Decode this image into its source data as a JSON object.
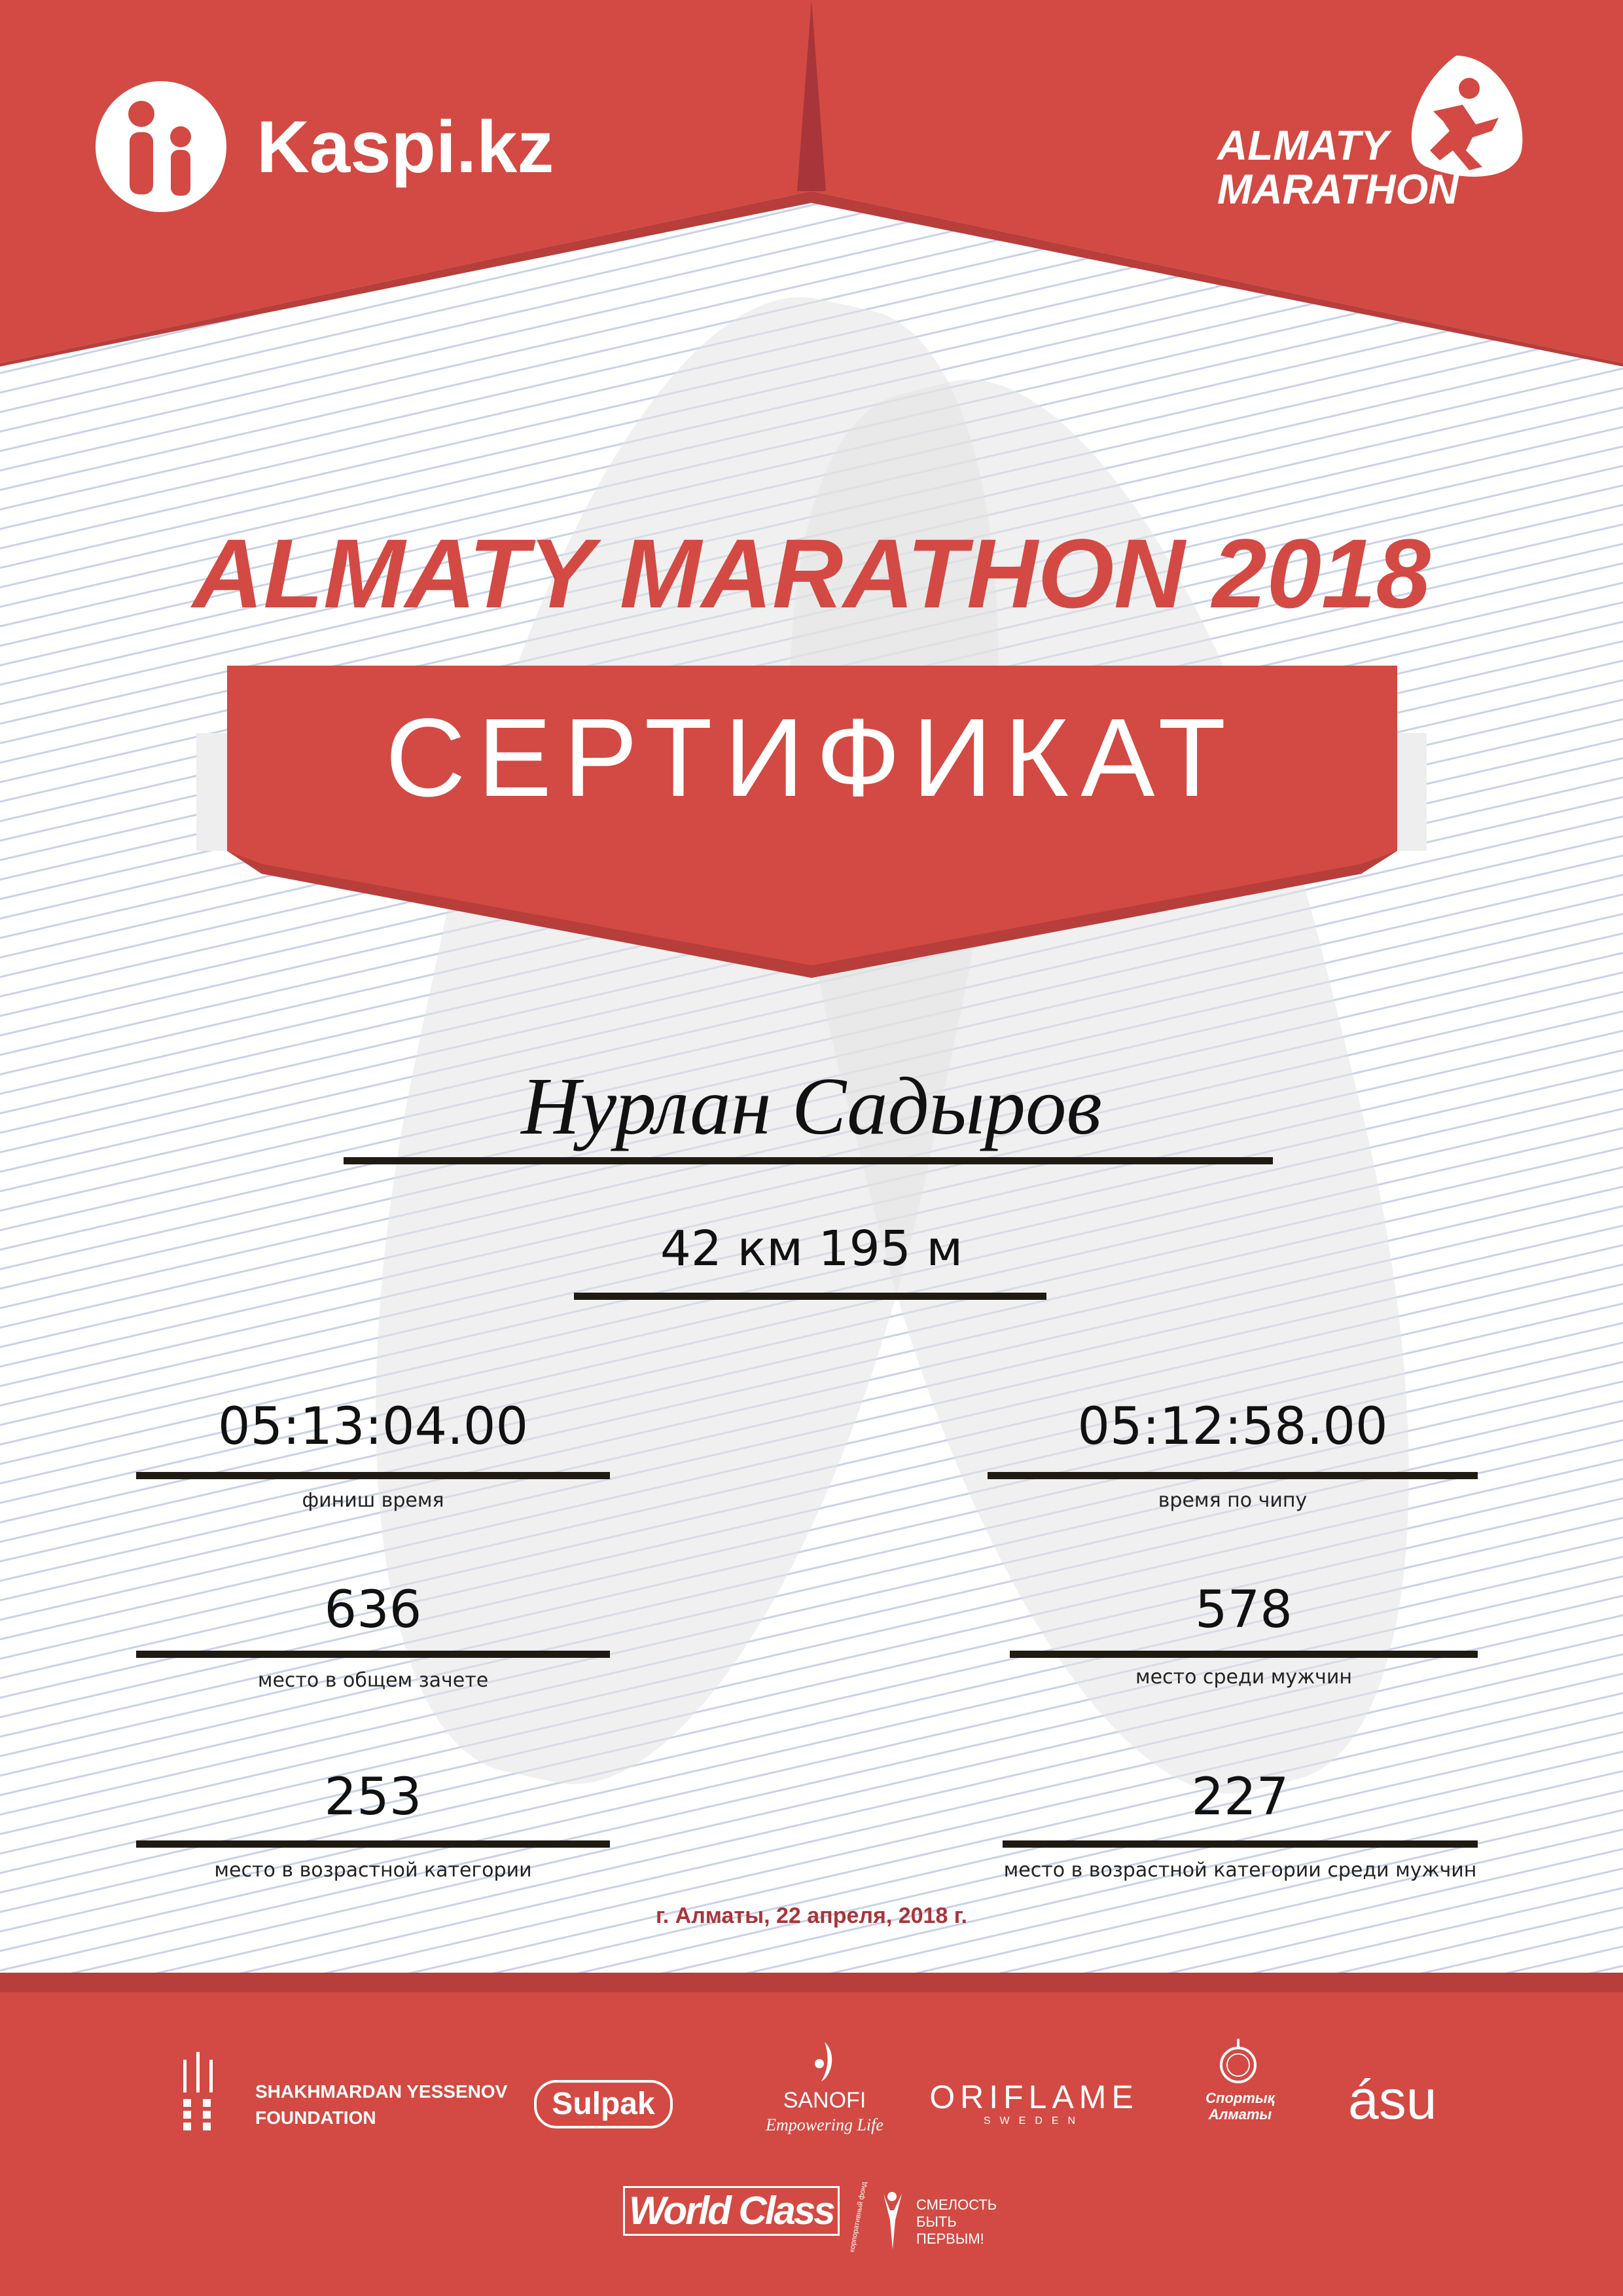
{
  "header": {
    "sponsor_logo": "Kaspi.kz",
    "event_logo_line1": "ALMATY",
    "event_logo_line2": "MARATHON"
  },
  "title": "ALMATY MARATHON 2018",
  "banner": "СЕРТИФИКАТ",
  "participant": {
    "name": "Нурлан Садыров",
    "distance": "42 км 195 м"
  },
  "results": {
    "finish_time": {
      "value": "05:13:04.00",
      "label": "финиш время"
    },
    "chip_time": {
      "value": "05:12:58.00",
      "label": "время по чипу"
    },
    "overall_place": {
      "value": "636",
      "label": "место в общем зачете"
    },
    "gender_place": {
      "value": "578",
      "label": "место среди мужчин"
    },
    "age_place": {
      "value": "253",
      "label": "место в возрастной категории"
    },
    "age_gender_place": {
      "value": "227",
      "label": "место в возрастной категории среди мужчин"
    }
  },
  "date_line": "г. Алматы, 22 апреля, 2018 г.",
  "sponsors": {
    "yessenov_line1": "SHAKHMARDAN YESSENOV",
    "yessenov_line2": "FOUNDATION",
    "sulpak": "Sulpak",
    "sanofi": "SANOFI",
    "sanofi_tagline": "Empowering Life",
    "oriflame": "ORIFLAME",
    "oriflame_sub": "SWEDEN",
    "sport_almaty_line1": "Спортық",
    "sport_almaty_line2": "Алматы",
    "asu": "ásu",
    "worldclass": "World Class",
    "fund_line1": "СМЕЛОСТЬ",
    "fund_line2": "БЫТЬ",
    "fund_line3": "ПЕРВЫМ!",
    "fund_arc": "корпоративный фонд"
  },
  "colors": {
    "brand_red": "#d24a43",
    "dark_red": "#a8353a",
    "line_blue": "#c3cde6"
  }
}
